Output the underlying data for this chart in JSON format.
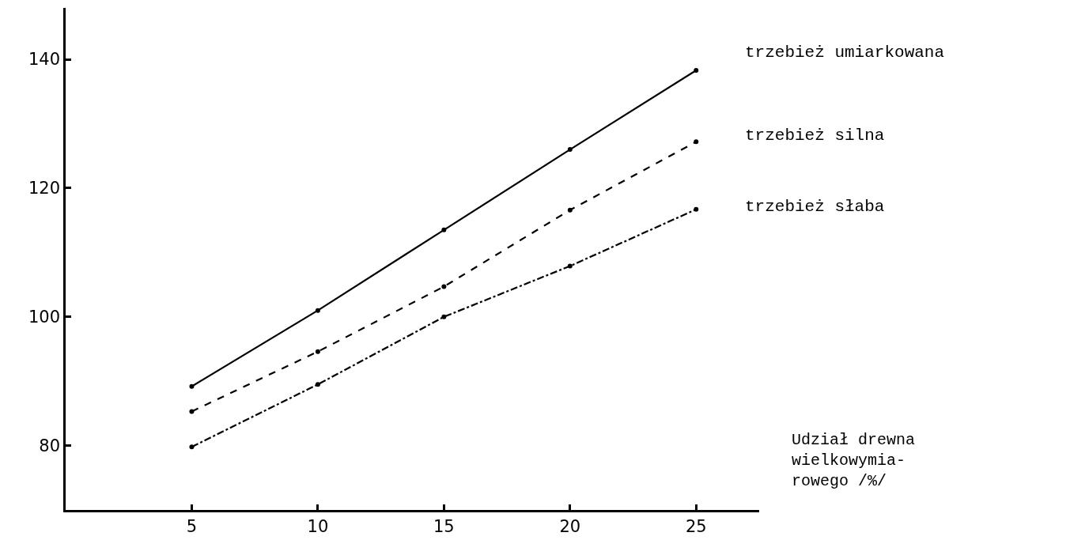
{
  "chart_data": {
    "type": "line",
    "xlabel": "Udział drewna\nwielkowymia-\nrowego /%/",
    "x": [
      5,
      10,
      15,
      20,
      25
    ],
    "xlim": [
      0,
      27.5
    ],
    "xticks": [
      5,
      10,
      15,
      20,
      25
    ],
    "ylim": [
      70,
      148
    ],
    "yticks": [
      80,
      100,
      120,
      140
    ],
    "grid": false,
    "legend": false,
    "marker": "circle",
    "series": [
      {
        "name": "trzebież umiarkowana",
        "color": "#000000",
        "line_style": "solid",
        "values": [
          89.2,
          101,
          113.5,
          126,
          138.3
        ]
      },
      {
        "name": "trzebież silna",
        "color": "#000000",
        "line_style": "dashed",
        "values": [
          85.3,
          94.6,
          104.7,
          116.6,
          127.2
        ]
      },
      {
        "name": "trzebież słaba",
        "color": "#000000",
        "line_style": "dashdot",
        "values": [
          79.8,
          89.5,
          100,
          107.9,
          116.7
        ]
      }
    ]
  }
}
